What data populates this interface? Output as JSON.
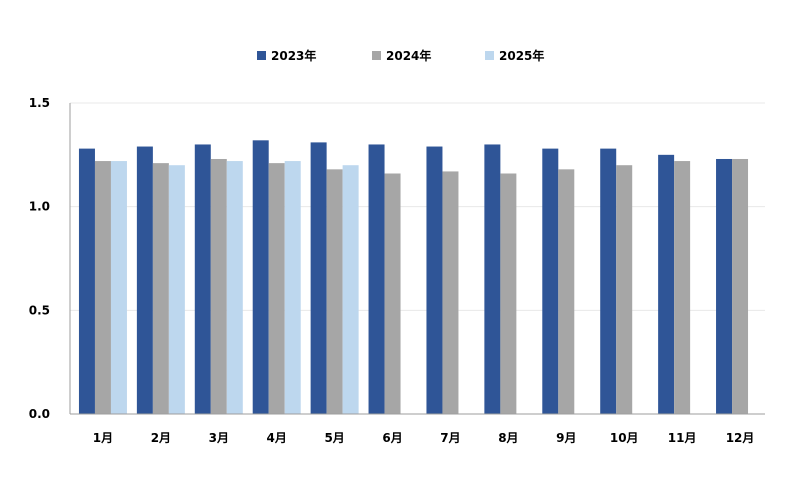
{
  "colors": {
    "series": [
      "#2F5597",
      "#A6A6A6",
      "#BDD7EE"
    ],
    "grid": "#E8E8E8",
    "axis": "#9E9E9E"
  },
  "chart_data": {
    "type": "bar",
    "title": "",
    "xlabel": "",
    "ylabel": "",
    "ylim": [
      0,
      1.5
    ],
    "yticks": [
      "0.0",
      "0.5",
      "1.0",
      "1.5"
    ],
    "grid": true,
    "legend_position": "top-center",
    "categories": [
      "1月",
      "2月",
      "3月",
      "4月",
      "5月",
      "6月",
      "7月",
      "8月",
      "9月",
      "10月",
      "11月",
      "12月"
    ],
    "series": [
      {
        "name": "2023年",
        "values": [
          1.28,
          1.29,
          1.3,
          1.32,
          1.31,
          1.3,
          1.29,
          1.3,
          1.28,
          1.28,
          1.25,
          1.23
        ]
      },
      {
        "name": "2024年",
        "values": [
          1.22,
          1.21,
          1.23,
          1.21,
          1.18,
          1.16,
          1.17,
          1.16,
          1.18,
          1.2,
          1.22,
          1.23
        ]
      },
      {
        "name": "2025年",
        "values": [
          1.22,
          1.2,
          1.22,
          1.22,
          1.2,
          null,
          null,
          null,
          null,
          null,
          null,
          null
        ]
      }
    ]
  }
}
